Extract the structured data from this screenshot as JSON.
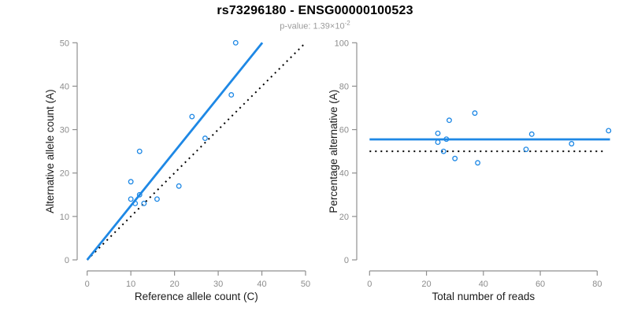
{
  "header": {
    "title": "rs73296180 - ENSG00000100523",
    "p_label": "p-value: 1.39×10",
    "p_exp": "-2"
  },
  "colors": {
    "accent_blue": "#1e88e5",
    "line_black": "#000000",
    "axis_gray": "#8f8f8f",
    "tick_label_gray": "#8c8c8c",
    "axis_title_color": "#1a1a1a",
    "title_color": "#000000",
    "subtitle_gray": "#9b9b9b",
    "background": "#ffffff"
  },
  "chart_data": [
    {
      "type": "scatter",
      "panel": "left",
      "xlabel": "Reference allele count (C)",
      "ylabel": "Alternative allele count (A)",
      "xlim": [
        0,
        50
      ],
      "ylim": [
        0,
        50
      ],
      "xticks": [
        0,
        10,
        20,
        30,
        40,
        50
      ],
      "yticks": [
        0,
        10,
        20,
        30,
        40,
        50
      ],
      "grid": false,
      "legend": "none",
      "points": [
        [
          10,
          18
        ],
        [
          21,
          17
        ],
        [
          10,
          14
        ],
        [
          12,
          15
        ],
        [
          16,
          14
        ],
        [
          11,
          13
        ],
        [
          13,
          13
        ],
        [
          12,
          25
        ],
        [
          24,
          33
        ],
        [
          27,
          28
        ],
        [
          33,
          38
        ],
        [
          34,
          50
        ]
      ],
      "fit_line": {
        "x1": 0,
        "y1": 0,
        "x2": 40.1,
        "y2": 50,
        "style": "solid"
      },
      "reference_line": {
        "x1": 0,
        "y1": 0,
        "x2": 50,
        "y2": 50,
        "style": "dotted"
      }
    },
    {
      "type": "scatter",
      "panel": "right",
      "xlabel": "Total number of reads",
      "ylabel": "Percentage alternative (A)",
      "xlim": [
        0,
        85
      ],
      "ylim": [
        0,
        100
      ],
      "xticks": [
        0,
        20,
        40,
        60,
        80
      ],
      "yticks": [
        0,
        20,
        40,
        60,
        80,
        100
      ],
      "grid": false,
      "legend": "none",
      "points": [
        [
          28,
          64.3
        ],
        [
          38,
          44.7
        ],
        [
          24,
          58.3
        ],
        [
          27,
          55.6
        ],
        [
          24,
          54.2
        ],
        [
          26,
          50
        ],
        [
          30,
          46.7
        ],
        [
          37,
          67.6
        ],
        [
          57,
          57.9
        ],
        [
          55,
          50.9
        ],
        [
          71,
          53.5
        ],
        [
          84,
          59.5
        ]
      ],
      "fit_line": {
        "x1": 0,
        "y1": 55.5,
        "x2": 84.5,
        "y2": 55.5,
        "style": "solid"
      },
      "reference_line": {
        "x1": 0,
        "y1": 50,
        "x2": 82,
        "y2": 50,
        "style": "dotted"
      }
    }
  ]
}
